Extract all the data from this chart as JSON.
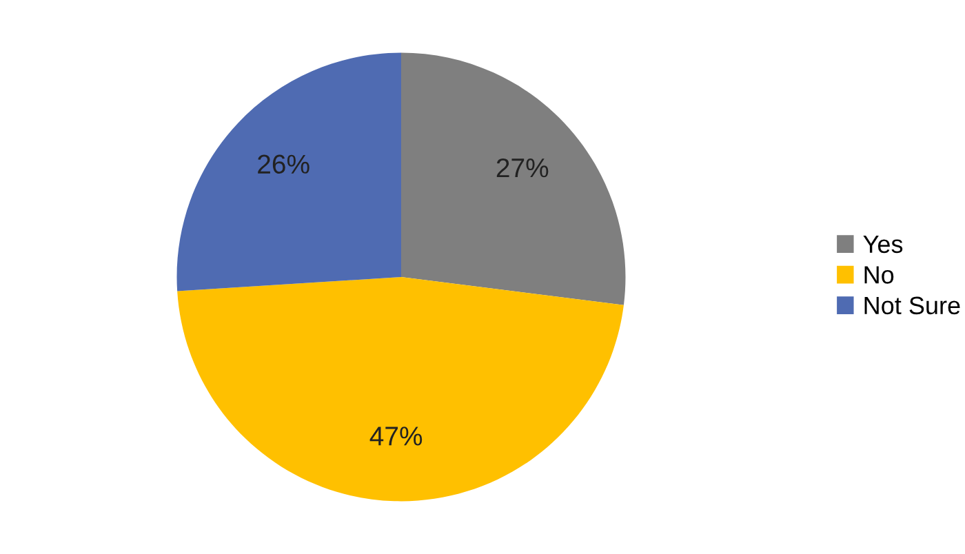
{
  "chart_data": {
    "type": "pie",
    "categories": [
      "Yes",
      "No",
      "Not Sure"
    ],
    "values": [
      27,
      47,
      26
    ],
    "colors": [
      "#7f7f7f",
      "#ffc000",
      "#4f6bb2"
    ],
    "value_labels": [
      "27%",
      "47%",
      "26%"
    ],
    "legend": "right"
  }
}
